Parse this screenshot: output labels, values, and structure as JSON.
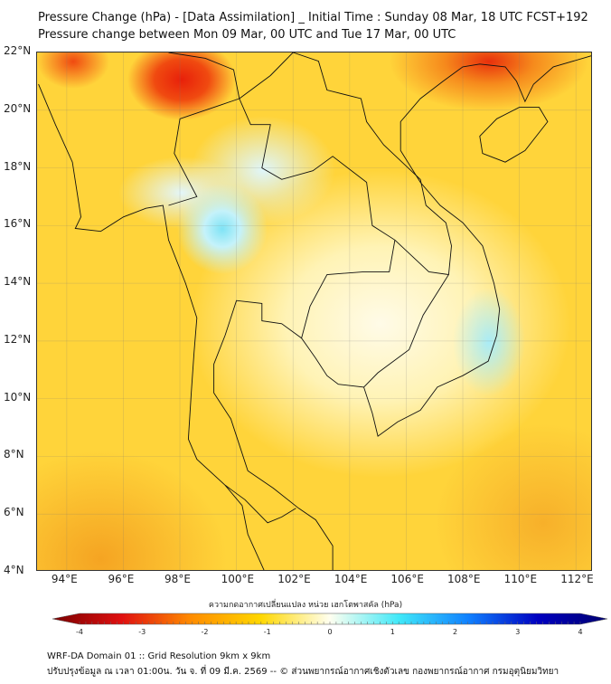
{
  "title": {
    "line1": "Pressure Change (hPa) - [Data Assimilation] _ Initial Time : Sunday 08 Mar, 18 UTC FCST+192",
    "line2": "Pressure change between Mon 09 Mar, 00 UTC and Tue 17 Mar, 00 UTC"
  },
  "map": {
    "lon_range": [
      92.95,
      112.6
    ],
    "lat_range": [
      4,
      22
    ],
    "lat_labels": [
      {
        "v": 22,
        "t": "22°N"
      },
      {
        "v": 20,
        "t": "20°N"
      },
      {
        "v": 18,
        "t": "18°N"
      },
      {
        "v": 16,
        "t": "16°N"
      },
      {
        "v": 14,
        "t": "14°N"
      },
      {
        "v": 12,
        "t": "12°N"
      },
      {
        "v": 10,
        "t": "10°N"
      },
      {
        "v": 8,
        "t": "8°N"
      },
      {
        "v": 6,
        "t": "6°N"
      },
      {
        "v": 4,
        "t": "4°N"
      }
    ],
    "lon_labels": [
      {
        "v": 94,
        "t": "94°E"
      },
      {
        "v": 96,
        "t": "96°E"
      },
      {
        "v": 98,
        "t": "98°E"
      },
      {
        "v": 100,
        "t": "100°E"
      },
      {
        "v": 102,
        "t": "102°E"
      },
      {
        "v": 104,
        "t": "104°E"
      },
      {
        "v": 106,
        "t": "106°E"
      },
      {
        "v": 108,
        "t": "108°E"
      },
      {
        "v": 110,
        "t": "110°E"
      },
      {
        "v": 112,
        "t": "112°E"
      }
    ]
  },
  "colorbar": {
    "label": "ความกดอากาศเปลี่ยนแปลง หน่วย เฮกโตพาสคัล (hPa)",
    "min": -4,
    "max": 4,
    "ticks": [
      {
        "v": -4,
        "t": "-4"
      },
      {
        "v": -3,
        "t": "-3"
      },
      {
        "v": -2,
        "t": "-2"
      },
      {
        "v": -1,
        "t": "-1"
      },
      {
        "v": 0,
        "t": "0"
      },
      {
        "v": 1,
        "t": "1"
      },
      {
        "v": 2,
        "t": "2"
      },
      {
        "v": 3,
        "t": "3"
      },
      {
        "v": 4,
        "t": "4"
      }
    ],
    "colors": [
      "#7a0000",
      "#e01010",
      "#ff8c00",
      "#ffd700",
      "#fffff0",
      "#40e8f8",
      "#1080ff",
      "#0000c0",
      "#000070"
    ]
  },
  "footer": {
    "line1": "WRF-DA Domain 01 :: Grid Resolution 9km x 9km",
    "line2": "ปรับปรุงข้อมูล ณ เวลา 01:00น. วัน จ. ที่ 09 มี.ค. 2569 -- © ส่วนพยากรณ์อากาศเชิงตัวเลข กองพยากรณ์อากาศ กรมอุตุนิยมวิทยา"
  }
}
